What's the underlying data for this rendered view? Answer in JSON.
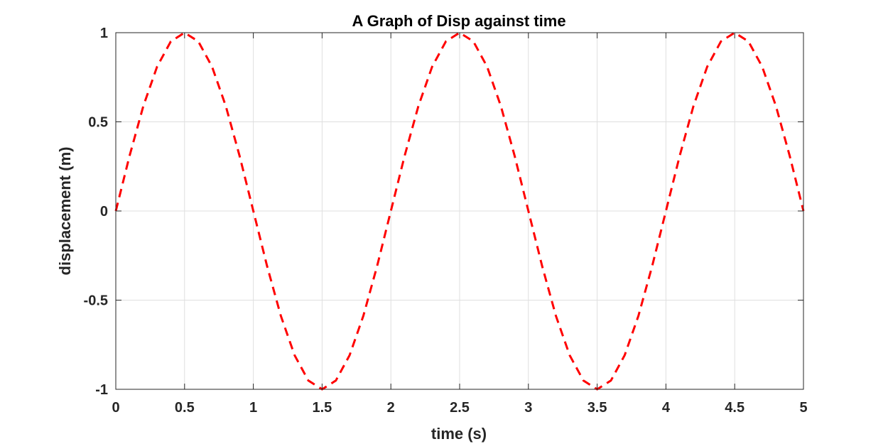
{
  "chart_data": {
    "type": "line",
    "title": "A Graph of Disp against time",
    "xlabel": "time (s)",
    "ylabel": "displacement (m)",
    "xlim": [
      0,
      5
    ],
    "ylim": [
      -1,
      1
    ],
    "xticks": [
      0,
      0.5,
      1,
      1.5,
      2,
      2.5,
      3,
      3.5,
      4,
      4.5,
      5
    ],
    "xtick_labels": [
      "0",
      "0.5",
      "1",
      "1.5",
      "2",
      "2.5",
      "3",
      "3.5",
      "4",
      "4.5",
      "5"
    ],
    "yticks": [
      -1,
      -0.5,
      0,
      0.5,
      1
    ],
    "ytick_labels": [
      "-1",
      "-0.5",
      "0",
      "0.5",
      "1"
    ],
    "grid": true,
    "series": [
      {
        "color": "#ff0000",
        "line_style": "dashed",
        "x": [
          0,
          0.1,
          0.2,
          0.3,
          0.4,
          0.5,
          0.6,
          0.7,
          0.8,
          0.9,
          1.0,
          1.1,
          1.2,
          1.3,
          1.4,
          1.5,
          1.6,
          1.7,
          1.8,
          1.9,
          2.0,
          2.1,
          2.2,
          2.3,
          2.4,
          2.5,
          2.6,
          2.7,
          2.8,
          2.9,
          3.0,
          3.1,
          3.2,
          3.3,
          3.4,
          3.5,
          3.6,
          3.7,
          3.8,
          3.9,
          4.0,
          4.1,
          4.2,
          4.3,
          4.4,
          4.5,
          4.6,
          4.7,
          4.8,
          4.9,
          5.0
        ],
        "y": [
          0,
          0.309,
          0.588,
          0.809,
          0.951,
          1,
          0.951,
          0.809,
          0.588,
          0.309,
          0,
          -0.309,
          -0.588,
          -0.809,
          -0.951,
          -1,
          -0.951,
          -0.809,
          -0.588,
          -0.309,
          0,
          0.309,
          0.588,
          0.809,
          0.951,
          1,
          0.951,
          0.809,
          0.588,
          0.309,
          0,
          -0.309,
          -0.588,
          -0.809,
          -0.951,
          -1,
          -0.951,
          -0.809,
          -0.588,
          -0.309,
          0,
          0.309,
          0.588,
          0.809,
          0.951,
          1,
          0.951,
          0.809,
          0.588,
          0.309,
          0
        ]
      }
    ]
  }
}
